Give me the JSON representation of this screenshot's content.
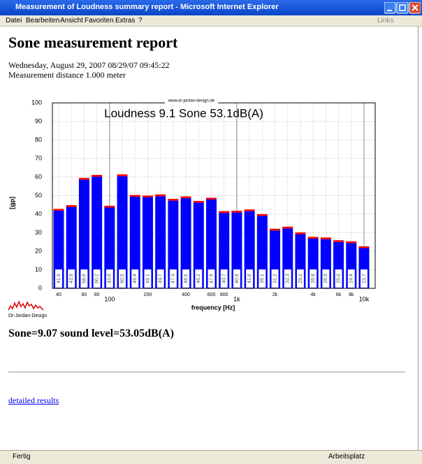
{
  "window": {
    "title": "Measurement of Loudness summary report - Microsoft Internet Explorer",
    "menu": [
      "Datei",
      "Bearbeiten",
      "Ansicht",
      "Favoriten",
      "Extras",
      "?"
    ],
    "links": "Links"
  },
  "page": {
    "heading": "Sone measurement report",
    "date": "Wednesday, August 29, 2007 08/29/07 09:45:22",
    "distance": "Measurement distance 1.000 meter",
    "summary": "Sone=9.07 sound level=53.05dB(A)",
    "link": "detailed results"
  },
  "status": {
    "left": "Fertig",
    "right": "Arbeitsplatz"
  },
  "chart_data": {
    "type": "bar",
    "title": "Loudness 9.1 Sone 53.1dB(A)",
    "watermark": "www.dr-jordan-design.de",
    "logo": "Dr-Jordan-Design",
    "ylabel": "[dB]",
    "xlabel": "frequency [Hz]",
    "categories": [
      "40",
      null,
      "60",
      "80",
      "100",
      null,
      null,
      "200",
      null,
      null,
      "400",
      null,
      "600",
      "800",
      "1k",
      null,
      null,
      "2k",
      null,
      null,
      "4k",
      null,
      "6k",
      "8k",
      "10k"
    ],
    "values": [
      41.9,
      43.9,
      58.6,
      60.2,
      43.6,
      60.5,
      49.4,
      49.1,
      49.7,
      47.3,
      48.6,
      46.2,
      47.9,
      40.7,
      40.9,
      41.6,
      39.1,
      31.2,
      32.3,
      29.2,
      26.8,
      26.5,
      25.0,
      24.4,
      21.7
    ],
    "value_labels": [
      "41.9",
      "43.9",
      "58.6",
      "60.2",
      "43.6",
      "60.5",
      "49.4",
      "49.1",
      "49.7",
      "47.3",
      "48.6",
      "46.2",
      "47.9",
      "40.7",
      "40.9",
      "41.6",
      "39.1",
      "31.2",
      "32.3",
      "29.2",
      "26.8",
      "26.5",
      "25.0",
      "24.4",
      "21.7"
    ],
    "color": "#0000ff",
    "cap_color": "#ff0000",
    "ylim": [
      0,
      100
    ],
    "yticks": [
      0,
      10,
      20,
      30,
      40,
      50,
      60,
      70,
      80,
      90,
      100
    ],
    "grid": true,
    "major_categories": [
      "100",
      "1k",
      "10k"
    ]
  }
}
